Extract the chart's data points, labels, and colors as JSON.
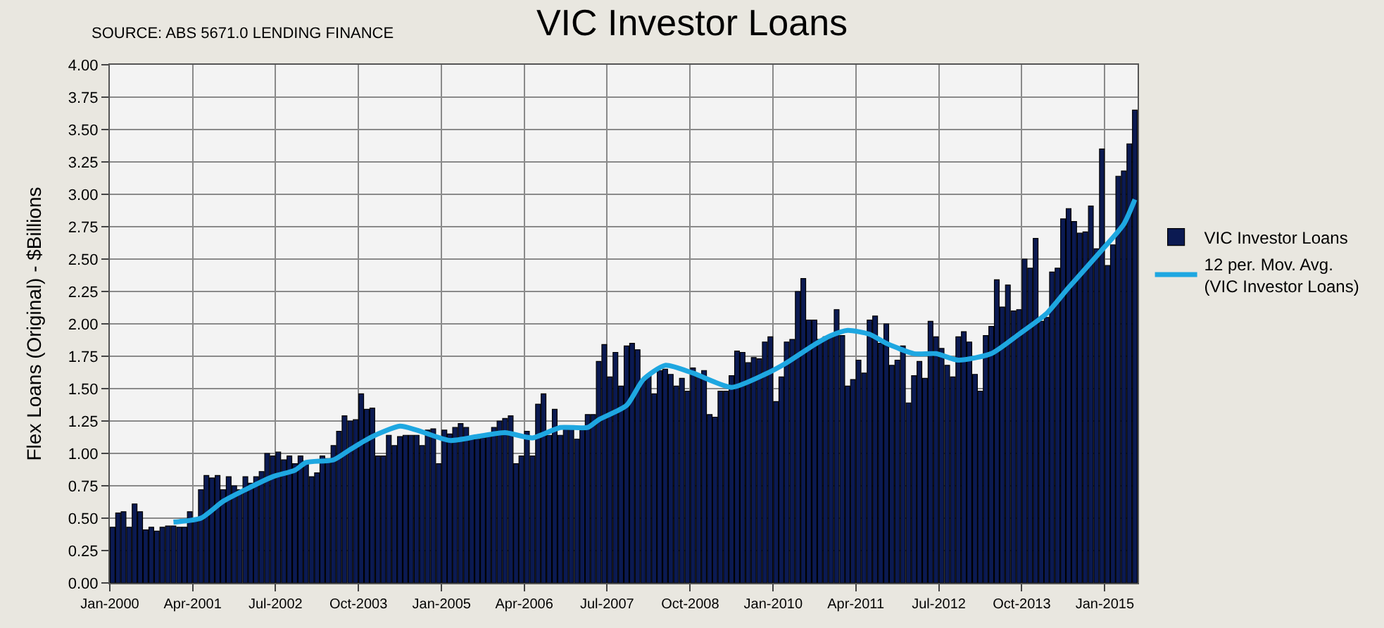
{
  "chart_data": {
    "type": "bar",
    "title": "VIC Investor Loans",
    "ylabel": "Flex Loans (Original) - $Billions",
    "annotations": [
      "SOURCE: ABS 5671.0 LENDING FINANCE"
    ],
    "x": [
      "2000-01",
      "2000-02",
      "2000-03",
      "2000-04",
      "2000-05",
      "2000-06",
      "2000-07",
      "2000-08",
      "2000-09",
      "2000-10",
      "2000-11",
      "2000-12",
      "2001-01",
      "2001-02",
      "2001-03",
      "2001-04",
      "2001-05",
      "2001-06",
      "2001-07",
      "2001-08",
      "2001-09",
      "2001-10",
      "2001-11",
      "2001-12",
      "2002-01",
      "2002-02",
      "2002-03",
      "2002-04",
      "2002-05",
      "2002-06",
      "2002-07",
      "2002-08",
      "2002-09",
      "2002-10",
      "2002-11",
      "2002-12",
      "2003-01",
      "2003-02",
      "2003-03",
      "2003-04",
      "2003-05",
      "2003-06",
      "2003-07",
      "2003-08",
      "2003-09",
      "2003-10",
      "2003-11",
      "2003-12",
      "2004-01",
      "2004-02",
      "2004-03",
      "2004-04",
      "2004-05",
      "2004-06",
      "2004-07",
      "2004-08",
      "2004-09",
      "2004-10",
      "2004-11",
      "2004-12",
      "2005-01",
      "2005-02",
      "2005-03",
      "2005-04",
      "2005-05",
      "2005-06",
      "2005-07",
      "2005-08",
      "2005-09",
      "2005-10",
      "2005-11",
      "2005-12",
      "2006-01",
      "2006-02",
      "2006-03",
      "2006-04",
      "2006-05",
      "2006-06",
      "2006-07",
      "2006-08",
      "2006-09",
      "2006-10",
      "2006-11",
      "2006-12",
      "2007-01",
      "2007-02",
      "2007-03",
      "2007-04",
      "2007-05",
      "2007-06",
      "2007-07",
      "2007-08",
      "2007-09",
      "2007-10",
      "2007-11",
      "2007-12",
      "2008-01",
      "2008-02",
      "2008-03",
      "2008-04",
      "2008-05",
      "2008-06",
      "2008-07",
      "2008-08",
      "2008-09",
      "2008-10",
      "2008-11",
      "2008-12",
      "2009-01",
      "2009-02",
      "2009-03",
      "2009-04",
      "2009-05",
      "2009-06",
      "2009-07",
      "2009-08",
      "2009-09",
      "2009-10",
      "2009-11",
      "2009-12",
      "2010-01",
      "2010-02",
      "2010-03",
      "2010-04",
      "2010-05",
      "2010-06",
      "2010-07",
      "2010-08",
      "2010-09",
      "2010-10",
      "2010-11",
      "2010-12",
      "2011-01",
      "2011-02",
      "2011-03",
      "2011-04",
      "2011-05",
      "2011-06",
      "2011-07",
      "2011-08",
      "2011-09",
      "2011-10",
      "2011-11",
      "2011-12",
      "2012-01",
      "2012-02",
      "2012-03",
      "2012-04",
      "2012-05",
      "2012-06",
      "2012-07",
      "2012-08",
      "2012-09",
      "2012-10",
      "2012-11",
      "2012-12",
      "2013-01",
      "2013-02",
      "2013-03",
      "2013-04",
      "2013-05",
      "2013-06",
      "2013-07",
      "2013-08",
      "2013-09",
      "2013-10",
      "2013-11",
      "2013-12",
      "2014-01",
      "2014-02",
      "2014-03",
      "2014-04",
      "2014-05",
      "2014-06",
      "2014-07",
      "2014-08",
      "2014-09",
      "2014-10",
      "2014-11",
      "2014-12",
      "2015-01",
      "2015-02",
      "2015-03",
      "2015-04",
      "2015-05",
      "2015-06"
    ],
    "series": [
      {
        "name": "VIC Investor Loans",
        "color": "#0b1a52",
        "values": [
          0.43,
          0.54,
          0.55,
          0.43,
          0.61,
          0.55,
          0.41,
          0.43,
          0.4,
          0.43,
          0.44,
          0.44,
          0.43,
          0.43,
          0.55,
          0.48,
          0.72,
          0.83,
          0.81,
          0.83,
          0.72,
          0.82,
          0.75,
          0.72,
          0.82,
          0.77,
          0.82,
          0.86,
          1.0,
          0.98,
          1.01,
          0.95,
          0.98,
          0.92,
          0.98,
          0.94,
          0.82,
          0.85,
          0.98,
          0.96,
          1.06,
          1.17,
          1.29,
          1.25,
          1.26,
          1.46,
          1.34,
          1.35,
          0.98,
          0.98,
          1.14,
          1.06,
          1.13,
          1.14,
          1.14,
          1.14,
          1.06,
          1.18,
          1.19,
          0.92,
          1.18,
          1.15,
          1.2,
          1.23,
          1.2,
          1.11,
          1.11,
          1.12,
          1.15,
          1.2,
          1.25,
          1.27,
          1.29,
          0.92,
          0.98,
          1.17,
          0.98,
          1.38,
          1.46,
          1.14,
          1.34,
          1.14,
          1.2,
          1.2,
          1.11,
          1.18,
          1.3,
          1.3,
          1.71,
          1.84,
          1.59,
          1.78,
          1.52,
          1.83,
          1.85,
          1.8,
          1.56,
          1.6,
          1.46,
          1.64,
          1.65,
          1.61,
          1.52,
          1.58,
          1.48,
          1.66,
          1.61,
          1.64,
          1.3,
          1.28,
          1.48,
          1.48,
          1.6,
          1.79,
          1.78,
          1.7,
          1.74,
          1.73,
          1.86,
          1.9,
          1.4,
          1.59,
          1.86,
          1.88,
          2.25,
          2.35,
          2.03,
          2.03,
          1.88,
          1.9,
          1.91,
          2.11,
          1.91,
          1.52,
          1.57,
          1.72,
          1.62,
          2.03,
          2.06,
          1.85,
          2.0,
          1.68,
          1.72,
          1.83,
          1.39,
          1.6,
          1.71,
          1.58,
          2.02,
          1.9,
          1.81,
          1.68,
          1.59,
          1.9,
          1.94,
          1.86,
          1.61,
          1.48,
          1.91,
          1.98,
          2.34,
          2.13,
          2.3,
          2.1,
          2.11,
          2.5,
          2.43,
          2.66,
          2.02,
          2.05,
          2.4,
          2.43,
          2.81,
          2.89,
          2.79,
          2.7,
          2.71,
          2.91,
          2.58,
          3.35,
          2.45,
          2.61,
          3.14,
          3.18,
          3.39,
          3.65
        ]
      },
      {
        "name": "12 per. Mov. Avg.\n(VIC Investor Loans)",
        "type": "line",
        "color": "#1ea7e1",
        "x": [
          "2000-12",
          "2001-05",
          "2001-09",
          "2002-01",
          "2002-06",
          "2002-10",
          "2002-12",
          "2003-05",
          "2003-08",
          "2003-12",
          "2004-05",
          "2004-08",
          "2005-02",
          "2005-07",
          "2005-12",
          "2006-05",
          "2006-10",
          "2007-03",
          "2007-05",
          "2007-10",
          "2008-01",
          "2008-05",
          "2008-10",
          "2009-05",
          "2009-11",
          "2010-03",
          "2010-08",
          "2010-11",
          "2011-02",
          "2011-06",
          "2011-09",
          "2012-02",
          "2012-06",
          "2012-10",
          "2013-04",
          "2013-09",
          "2014-02",
          "2014-06",
          "2014-12",
          "2015-04",
          "2015-06"
        ],
        "values": [
          0.47,
          0.5,
          0.63,
          0.72,
          0.82,
          0.87,
          0.93,
          0.95,
          1.03,
          1.13,
          1.21,
          1.18,
          1.1,
          1.13,
          1.16,
          1.12,
          1.2,
          1.2,
          1.26,
          1.37,
          1.57,
          1.68,
          1.62,
          1.51,
          1.61,
          1.7,
          1.84,
          1.91,
          1.95,
          1.92,
          1.85,
          1.77,
          1.77,
          1.72,
          1.77,
          1.92,
          2.08,
          2.28,
          2.57,
          2.77,
          2.96
        ]
      }
    ],
    "xlim": [
      "2000-01",
      "2015-07"
    ],
    "xticks": [
      {
        "value": "2000-01",
        "label": "Jan-2000"
      },
      {
        "value": "2001-04",
        "label": "Apr-2001"
      },
      {
        "value": "2002-07",
        "label": "Jul-2002"
      },
      {
        "value": "2003-10",
        "label": "Oct-2003"
      },
      {
        "value": "2005-01",
        "label": "Jan-2005"
      },
      {
        "value": "2006-04",
        "label": "Apr-2006"
      },
      {
        "value": "2007-07",
        "label": "Jul-2007"
      },
      {
        "value": "2008-10",
        "label": "Oct-2008"
      },
      {
        "value": "2010-01",
        "label": "Jan-2010"
      },
      {
        "value": "2011-04",
        "label": "Apr-2011"
      },
      {
        "value": "2012-07",
        "label": "Jul-2012"
      },
      {
        "value": "2013-10",
        "label": "Oct-2013"
      },
      {
        "value": "2015-01",
        "label": "Jan-2015"
      }
    ],
    "ylim": [
      0,
      4
    ],
    "yticks": [
      {
        "value": 0,
        "label": "0.00"
      },
      {
        "value": 0.25,
        "label": "0.25"
      },
      {
        "value": 0.5,
        "label": "0.50"
      },
      {
        "value": 0.75,
        "label": "0.75"
      },
      {
        "value": 1,
        "label": "1.00"
      },
      {
        "value": 1.25,
        "label": "1.25"
      },
      {
        "value": 1.5,
        "label": "1.50"
      },
      {
        "value": 1.75,
        "label": "1.75"
      },
      {
        "value": 2,
        "label": "2.00"
      },
      {
        "value": 2.25,
        "label": "2.25"
      },
      {
        "value": 2.5,
        "label": "2.50"
      },
      {
        "value": 2.75,
        "label": "2.75"
      },
      {
        "value": 3,
        "label": "3.00"
      },
      {
        "value": 3.25,
        "label": "3.25"
      },
      {
        "value": 3.5,
        "label": "3.50"
      },
      {
        "value": 3.75,
        "label": "3.75"
      },
      {
        "value": 4,
        "label": "4.00"
      }
    ],
    "grid": true,
    "legend": "right"
  }
}
